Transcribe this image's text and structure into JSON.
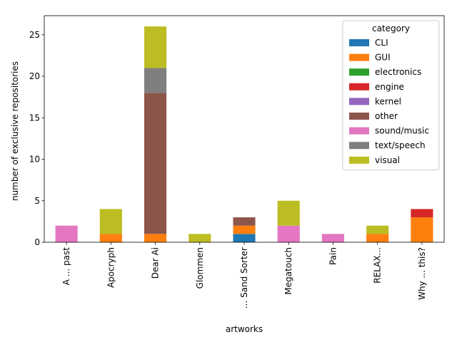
{
  "chart_data": {
    "type": "bar",
    "stacked": true,
    "categories": [
      "A ... past",
      "Apocryph",
      "Dear Ai",
      "Glommen",
      "... Sand Sorter",
      "Megatouch",
      "Pain",
      "RELAX...",
      "Why ... this?"
    ],
    "series": [
      {
        "name": "CLI",
        "color": "#1f77b4",
        "values": [
          0,
          0,
          0,
          0,
          1,
          0,
          0,
          0,
          0
        ]
      },
      {
        "name": "GUI",
        "color": "#ff7f0e",
        "values": [
          0,
          1,
          1,
          0,
          1,
          0,
          0,
          1,
          3
        ]
      },
      {
        "name": "electronics",
        "color": "#2ca02c",
        "values": [
          0,
          0,
          0,
          0,
          0,
          0,
          0,
          0,
          0
        ]
      },
      {
        "name": "engine",
        "color": "#d62728",
        "values": [
          0,
          0,
          0,
          0,
          0,
          0,
          0,
          0,
          1
        ]
      },
      {
        "name": "kernel",
        "color": "#9467bd",
        "values": [
          0,
          0,
          0,
          0,
          0,
          0,
          0,
          0,
          0
        ]
      },
      {
        "name": "other",
        "color": "#8c564b",
        "values": [
          0,
          0,
          17,
          0,
          1,
          0,
          0,
          0,
          0
        ]
      },
      {
        "name": "sound/music",
        "color": "#e377c2",
        "values": [
          2,
          0,
          0,
          0,
          0,
          2,
          1,
          0,
          0
        ]
      },
      {
        "name": "text/speech",
        "color": "#7f7f7f",
        "values": [
          0,
          0,
          3,
          0,
          0,
          0,
          0,
          0,
          0
        ]
      },
      {
        "name": "visual",
        "color": "#bcbd22",
        "values": [
          0,
          3,
          5,
          1,
          0,
          3,
          0,
          1,
          0
        ]
      }
    ],
    "xlabel": "artworks",
    "ylabel": "number of exclusive repositories",
    "ylim": [
      0,
      27.3
    ],
    "yticks": [
      0,
      5,
      10,
      15,
      20,
      25
    ],
    "grid": false,
    "legend": {
      "title": "category",
      "placement": "top-right"
    }
  }
}
